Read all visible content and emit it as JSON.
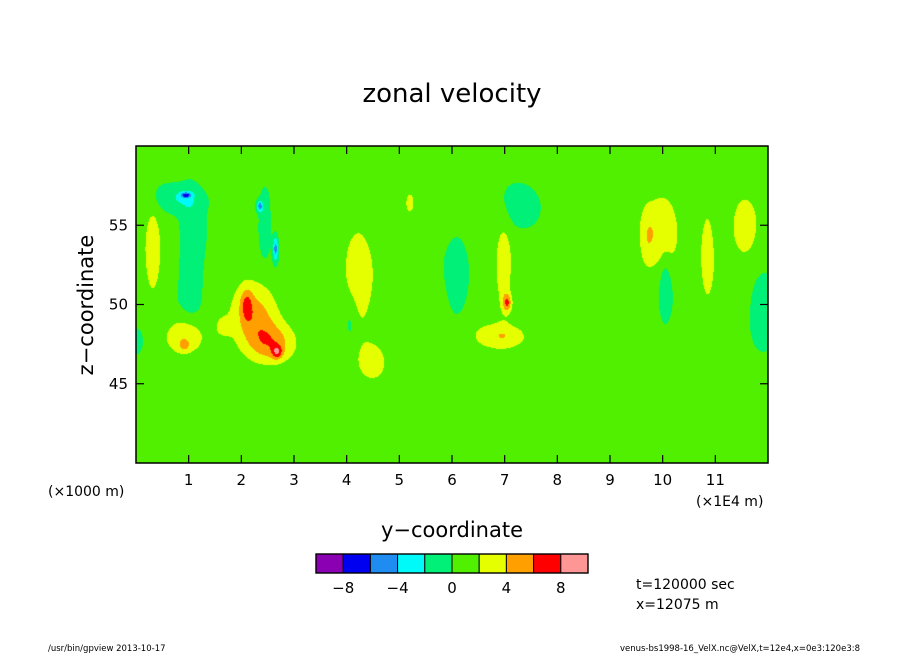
{
  "chart_data": {
    "type": "heatmap",
    "title": "zonal velocity",
    "xlabel": "y−coordinate",
    "ylabel": "z−coordinate",
    "x_unit_left": "(×1000 m)",
    "x_unit_right": "(×1E4 m)",
    "xlim": [
      0,
      12
    ],
    "ylim": [
      40,
      60
    ],
    "x_ticks": [
      "1",
      "2",
      "3",
      "4",
      "5",
      "6",
      "7",
      "8",
      "9",
      "10",
      "11"
    ],
    "y_ticks": [
      "45",
      "50",
      "55"
    ],
    "colorbar": {
      "levels": [
        -10,
        -8,
        -6,
        -4,
        -2,
        0,
        2,
        4,
        6,
        8,
        10
      ],
      "colors": [
        "#8c00b4",
        "#0000f0",
        "#1e8cf0",
        "#00fafa",
        "#00f078",
        "#50f000",
        "#e6ff00",
        "#ffa000",
        "#ff0000",
        "#ff9696"
      ],
      "tick_labels": [
        "−8",
        "−4",
        "0",
        "4",
        "8"
      ]
    },
    "background_value": 0.5,
    "features": [
      {
        "y": 0.32,
        "z": 53.2,
        "sy": 0.1,
        "sz": 1.9,
        "value": 3.2
      },
      {
        "y": 0.92,
        "z": 48.0,
        "sy": 0.26,
        "sz": 0.8,
        "value": 3.6
      },
      {
        "y": 0.92,
        "z": 47.4,
        "sy": 0.06,
        "sz": 0.2,
        "value": 2.5
      },
      {
        "y": 2.25,
        "z": 49.1,
        "sy": 0.3,
        "sz": 1.5,
        "value": 4.3
      },
      {
        "y": 2.6,
        "z": 47.5,
        "sy": 0.3,
        "sz": 0.9,
        "value": 4.3
      },
      {
        "y": 2.1,
        "z": 50.0,
        "sy": 0.08,
        "sz": 0.7,
        "value": 3.4
      },
      {
        "y": 2.68,
        "z": 47.0,
        "sy": 0.07,
        "sz": 0.3,
        "value": 4.4
      },
      {
        "y": 1.65,
        "z": 48.6,
        "sy": 0.12,
        "sz": 0.5,
        "value": 1.8
      },
      {
        "y": 4.5,
        "z": 46.4,
        "sy": 0.2,
        "sz": 0.9,
        "value": 2.8
      },
      {
        "y": 4.22,
        "z": 51.7,
        "sy": 0.2,
        "sz": 2.5,
        "value": 3.0
      },
      {
        "y": 5.2,
        "z": 56.4,
        "sy": 0.05,
        "sz": 0.4,
        "value": 3.0
      },
      {
        "y": 6.98,
        "z": 52.2,
        "sy": 0.1,
        "sz": 1.8,
        "value": 3.2
      },
      {
        "y": 6.95,
        "z": 48.0,
        "sy": 0.35,
        "sz": 0.6,
        "value": 3.3
      },
      {
        "y": 7.05,
        "z": 50.1,
        "sy": 0.06,
        "sz": 0.4,
        "value": 5.0
      },
      {
        "y": 10.0,
        "z": 54.5,
        "sy": 0.22,
        "sz": 1.8,
        "value": 3.1
      },
      {
        "y": 10.85,
        "z": 53.2,
        "sy": 0.1,
        "sz": 2.2,
        "value": 3.0
      },
      {
        "y": 11.55,
        "z": 55.0,
        "sy": 0.18,
        "sz": 1.3,
        "value": 3.3
      },
      {
        "y": 9.7,
        "z": 54.2,
        "sy": 0.1,
        "sz": 1.4,
        "value": 2.0
      },
      {
        "y": 1.05,
        "z": 53.3,
        "sy": 0.14,
        "sz": 2.7,
        "value": -2.2
      },
      {
        "y": 0.8,
        "z": 56.7,
        "sy": 0.3,
        "sz": 0.6,
        "value": -2.4
      },
      {
        "y": 0.95,
        "z": 56.9,
        "sy": 0.07,
        "sz": 0.12,
        "value": -5.8
      },
      {
        "y": 2.45,
        "z": 55.2,
        "sy": 0.08,
        "sz": 1.5,
        "value": -2.0
      },
      {
        "y": 2.65,
        "z": 53.5,
        "sy": 0.035,
        "sz": 0.55,
        "value": -5.5
      },
      {
        "y": 2.35,
        "z": 56.2,
        "sy": 0.04,
        "sz": 0.25,
        "value": -5.2
      },
      {
        "y": 4.08,
        "z": 49.0,
        "sy": 0.1,
        "sz": 1.3,
        "value": -1.8
      },
      {
        "y": 6.1,
        "z": 51.5,
        "sy": 0.12,
        "sz": 1.5,
        "value": -2.0
      },
      {
        "y": 7.35,
        "z": 56.1,
        "sy": 0.22,
        "sz": 0.9,
        "value": -2.0
      },
      {
        "y": 10.05,
        "z": 51.5,
        "sy": 0.08,
        "sz": 1.6,
        "value": -2.0
      },
      {
        "y": 11.9,
        "z": 50.0,
        "sy": 0.15,
        "sz": 1.3,
        "value": -2.2
      },
      {
        "y": 0.0,
        "z": 47.7,
        "sy": 0.08,
        "sz": 0.5,
        "value": -2.2
      },
      {
        "y": 0.3,
        "z": 46.0,
        "sy": 0.25,
        "sz": 0.4,
        "value": 1.2
      },
      {
        "y": 1.6,
        "z": 42.5,
        "sy": 0.4,
        "sz": 0.4,
        "value": 1.2
      },
      {
        "y": 5.8,
        "z": 43.0,
        "sy": 0.5,
        "sz": 0.4,
        "value": 1.2
      },
      {
        "y": 8.9,
        "z": 44.5,
        "sy": 0.5,
        "sz": 0.5,
        "value": 1.2
      },
      {
        "y": 11.5,
        "z": 41.5,
        "sy": 0.3,
        "sz": 0.5,
        "value": 1.2
      },
      {
        "y": 8.3,
        "z": 52.5,
        "sy": 0.4,
        "sz": 2.5,
        "value": 1.1
      },
      {
        "y": 3.0,
        "z": 58.5,
        "sy": 0.6,
        "sz": 0.6,
        "value": 1.1
      }
    ]
  },
  "info": {
    "time": "t=120000 sec",
    "position": "x=12075 m"
  },
  "footer": {
    "left": "/usr/bin/gpview  2013-10-17",
    "right": "venus-bs1998-16_VelX.nc@VelX,t=12e4,x=0e3:120e3:8"
  }
}
